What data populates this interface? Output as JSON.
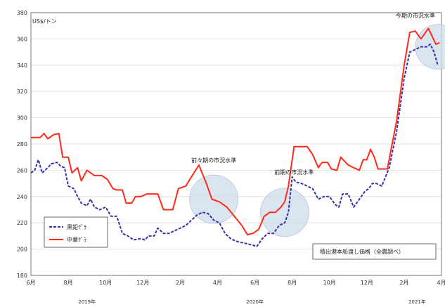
{
  "chart_data": {
    "type": "line",
    "ylabel": "US$/トン",
    "ylim": [
      180,
      380
    ],
    "yticks": [
      180,
      200,
      220,
      240,
      260,
      280,
      300,
      320,
      340,
      360,
      380
    ],
    "grid": "horizontal",
    "xticks": [
      {
        "label": "6月",
        "pos": 0
      },
      {
        "label": "8月",
        "pos": 2
      },
      {
        "label": "10月",
        "pos": 4
      },
      {
        "label": "12月",
        "pos": 6
      },
      {
        "label": "2月",
        "pos": 8
      },
      {
        "label": "4月",
        "pos": 10
      },
      {
        "label": "6月",
        "pos": 12
      },
      {
        "label": "8月",
        "pos": 14
      },
      {
        "label": "10月",
        "pos": 16
      },
      {
        "label": "12月",
        "pos": 18
      },
      {
        "label": "2月",
        "pos": 20
      },
      {
        "label": "4月",
        "pos": 22
      }
    ],
    "year_labels": [
      {
        "label": "2019年",
        "pos": 3
      },
      {
        "label": "2020年",
        "pos": 12
      },
      {
        "label": "2021年",
        "pos": 20.7
      }
    ],
    "xlim": [
      0,
      22
    ],
    "series": [
      {
        "name": "中華ｸﾞﾗ",
        "color": "#ff2a1a",
        "style": "solid",
        "points": [
          [
            0,
            285
          ],
          [
            0.5,
            285
          ],
          [
            0.7,
            288
          ],
          [
            0.9,
            284
          ],
          [
            1.2,
            287
          ],
          [
            1.5,
            288
          ],
          [
            1.7,
            270
          ],
          [
            2.0,
            270
          ],
          [
            2.2,
            258
          ],
          [
            2.5,
            262
          ],
          [
            2.7,
            252
          ],
          [
            3.0,
            260
          ],
          [
            3.2,
            258
          ],
          [
            3.4,
            256
          ],
          [
            3.8,
            256
          ],
          [
            4.1,
            253
          ],
          [
            4.4,
            246
          ],
          [
            4.6,
            245
          ],
          [
            4.9,
            245
          ],
          [
            5.1,
            235
          ],
          [
            5.4,
            235
          ],
          [
            5.6,
            240
          ],
          [
            5.9,
            240
          ],
          [
            6.2,
            242
          ],
          [
            6.8,
            242
          ],
          [
            7.1,
            230
          ],
          [
            7.6,
            230
          ],
          [
            7.9,
            246
          ],
          [
            8.3,
            248
          ],
          [
            8.6,
            255
          ],
          [
            9.0,
            264
          ],
          [
            9.4,
            250
          ],
          [
            9.7,
            238
          ],
          [
            10.1,
            236
          ],
          [
            10.5,
            232
          ],
          [
            10.9,
            225
          ],
          [
            11.3,
            218
          ],
          [
            11.6,
            211
          ],
          [
            11.9,
            212
          ],
          [
            12.2,
            215
          ],
          [
            12.5,
            225
          ],
          [
            12.8,
            228
          ],
          [
            13.1,
            228
          ],
          [
            13.4,
            232
          ],
          [
            13.6,
            236
          ],
          [
            13.8,
            248
          ],
          [
            14.1,
            278
          ],
          [
            14.4,
            278
          ],
          [
            14.8,
            278
          ],
          [
            15.1,
            272
          ],
          [
            15.4,
            262
          ],
          [
            15.6,
            266
          ],
          [
            15.9,
            266
          ],
          [
            16.1,
            261
          ],
          [
            16.4,
            260
          ],
          [
            16.6,
            270
          ],
          [
            17.0,
            264
          ],
          [
            17.3,
            262
          ],
          [
            17.6,
            260
          ],
          [
            17.8,
            268
          ],
          [
            18.0,
            268
          ],
          [
            18.2,
            276
          ],
          [
            18.4,
            270
          ],
          [
            18.6,
            261
          ],
          [
            19.1,
            261
          ],
          [
            19.6,
            298
          ],
          [
            20.0,
            340
          ],
          [
            20.3,
            365
          ],
          [
            20.6,
            366
          ],
          [
            20.9,
            360
          ],
          [
            21.1,
            364
          ],
          [
            21.3,
            368
          ],
          [
            21.5,
            362
          ],
          [
            21.7,
            356
          ],
          [
            21.9,
            357
          ]
        ]
      },
      {
        "name": "黒鉛ｸﾞﾗ",
        "color": "#3333aa",
        "style": "dashed",
        "points": [
          [
            0,
            258
          ],
          [
            0.2,
            260
          ],
          [
            0.4,
            268
          ],
          [
            0.6,
            258
          ],
          [
            0.9,
            262
          ],
          [
            1.1,
            265
          ],
          [
            1.4,
            266
          ],
          [
            1.6,
            263
          ],
          [
            1.8,
            262
          ],
          [
            2.0,
            248
          ],
          [
            2.3,
            246
          ],
          [
            2.5,
            240
          ],
          [
            2.7,
            235
          ],
          [
            3.0,
            233
          ],
          [
            3.2,
            238
          ],
          [
            3.4,
            232
          ],
          [
            3.7,
            230
          ],
          [
            4.0,
            232
          ],
          [
            4.3,
            225
          ],
          [
            4.6,
            225
          ],
          [
            4.9,
            212
          ],
          [
            5.2,
            210
          ],
          [
            5.5,
            207
          ],
          [
            5.9,
            208
          ],
          [
            6.1,
            207
          ],
          [
            6.3,
            210
          ],
          [
            6.6,
            210
          ],
          [
            6.8,
            216
          ],
          [
            7.1,
            212
          ],
          [
            7.4,
            212
          ],
          [
            7.7,
            214
          ],
          [
            8.0,
            216
          ],
          [
            8.3,
            218
          ],
          [
            8.6,
            222
          ],
          [
            8.9,
            226
          ],
          [
            9.2,
            228
          ],
          [
            9.5,
            227
          ],
          [
            9.8,
            222
          ],
          [
            10.1,
            220
          ],
          [
            10.4,
            212
          ],
          [
            10.7,
            208
          ],
          [
            11.0,
            206
          ],
          [
            11.3,
            205
          ],
          [
            11.6,
            204
          ],
          [
            11.9,
            203
          ],
          [
            12.1,
            202
          ],
          [
            12.4,
            208
          ],
          [
            12.7,
            212
          ],
          [
            13.0,
            212
          ],
          [
            13.3,
            218
          ],
          [
            13.6,
            220
          ],
          [
            13.8,
            228
          ],
          [
            14.0,
            255
          ],
          [
            14.2,
            251
          ],
          [
            14.5,
            250
          ],
          [
            14.8,
            248
          ],
          [
            15.1,
            246
          ],
          [
            15.4,
            238
          ],
          [
            15.7,
            240
          ],
          [
            16.0,
            240
          ],
          [
            16.3,
            234
          ],
          [
            16.5,
            232
          ],
          [
            16.7,
            242
          ],
          [
            17.0,
            242
          ],
          [
            17.3,
            232
          ],
          [
            17.6,
            238
          ],
          [
            17.9,
            244
          ],
          [
            18.1,
            246
          ],
          [
            18.3,
            250
          ],
          [
            18.5,
            250
          ],
          [
            18.8,
            248
          ],
          [
            19.2,
            262
          ],
          [
            19.6,
            290
          ],
          [
            20.0,
            330
          ],
          [
            20.3,
            350
          ],
          [
            20.6,
            352
          ],
          [
            20.9,
            354
          ],
          [
            21.2,
            354
          ],
          [
            21.4,
            356
          ],
          [
            21.6,
            350
          ],
          [
            21.8,
            340
          ]
        ]
      }
    ],
    "annotations": [
      {
        "text": "前々期の市況水準",
        "x": 9.8,
        "y": 264,
        "circle": {
          "cx": 9.8,
          "cy": 238,
          "r": 1.3
        }
      },
      {
        "text": "前期の市況水準",
        "x": 14.1,
        "y": 255,
        "circle": {
          "cx": 13.6,
          "cy": 228,
          "r": 1.3
        }
      },
      {
        "text": "今期の市況水準",
        "x": 20.6,
        "y": 374,
        "circle": {
          "cx": 21.8,
          "cy": 354,
          "r": 1.2
        }
      }
    ],
    "note": "積出港本船渡し価格（全農調べ）",
    "legend_position": "bottom-left"
  }
}
